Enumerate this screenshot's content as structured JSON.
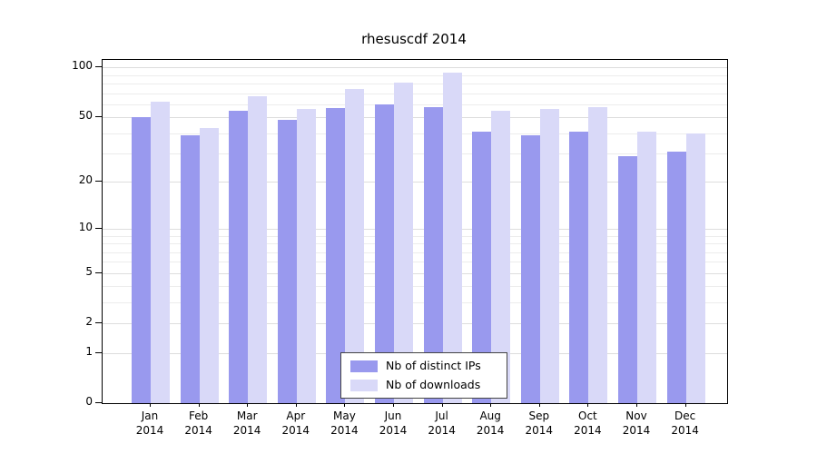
{
  "chart_data": {
    "type": "bar",
    "title": "rhesuscdf 2014",
    "scale": "log(1+x)",
    "grid": true,
    "legend_position": "bottom-center",
    "year_label": "2014",
    "categories": [
      "Jan",
      "Feb",
      "Mar",
      "Apr",
      "May",
      "Jun",
      "Jul",
      "Aug",
      "Sep",
      "Oct",
      "Nov",
      "Dec"
    ],
    "series": [
      {
        "id": "distinct-ips",
        "name": "Nb of distinct IPs",
        "color": "#9999ee",
        "values": [
          50,
          39,
          55,
          48,
          57,
          60,
          58,
          41,
          39,
          41,
          29,
          31
        ]
      },
      {
        "id": "downloads",
        "name": "Nb of downloads",
        "color": "#d9d9f8",
        "values": [
          62,
          43,
          67,
          56,
          74,
          81,
          93,
          55,
          56,
          58,
          41,
          40
        ]
      }
    ],
    "y_ticks": [
      100,
      50,
      20,
      10,
      5,
      2,
      1,
      0
    ],
    "gridlines": [
      1,
      2,
      3,
      4,
      5,
      6,
      7,
      8,
      9,
      10,
      20,
      30,
      40,
      50,
      60,
      70,
      80,
      90,
      100
    ],
    "ylim": [
      0,
      111
    ],
    "xlabel": "",
    "ylabel": ""
  }
}
